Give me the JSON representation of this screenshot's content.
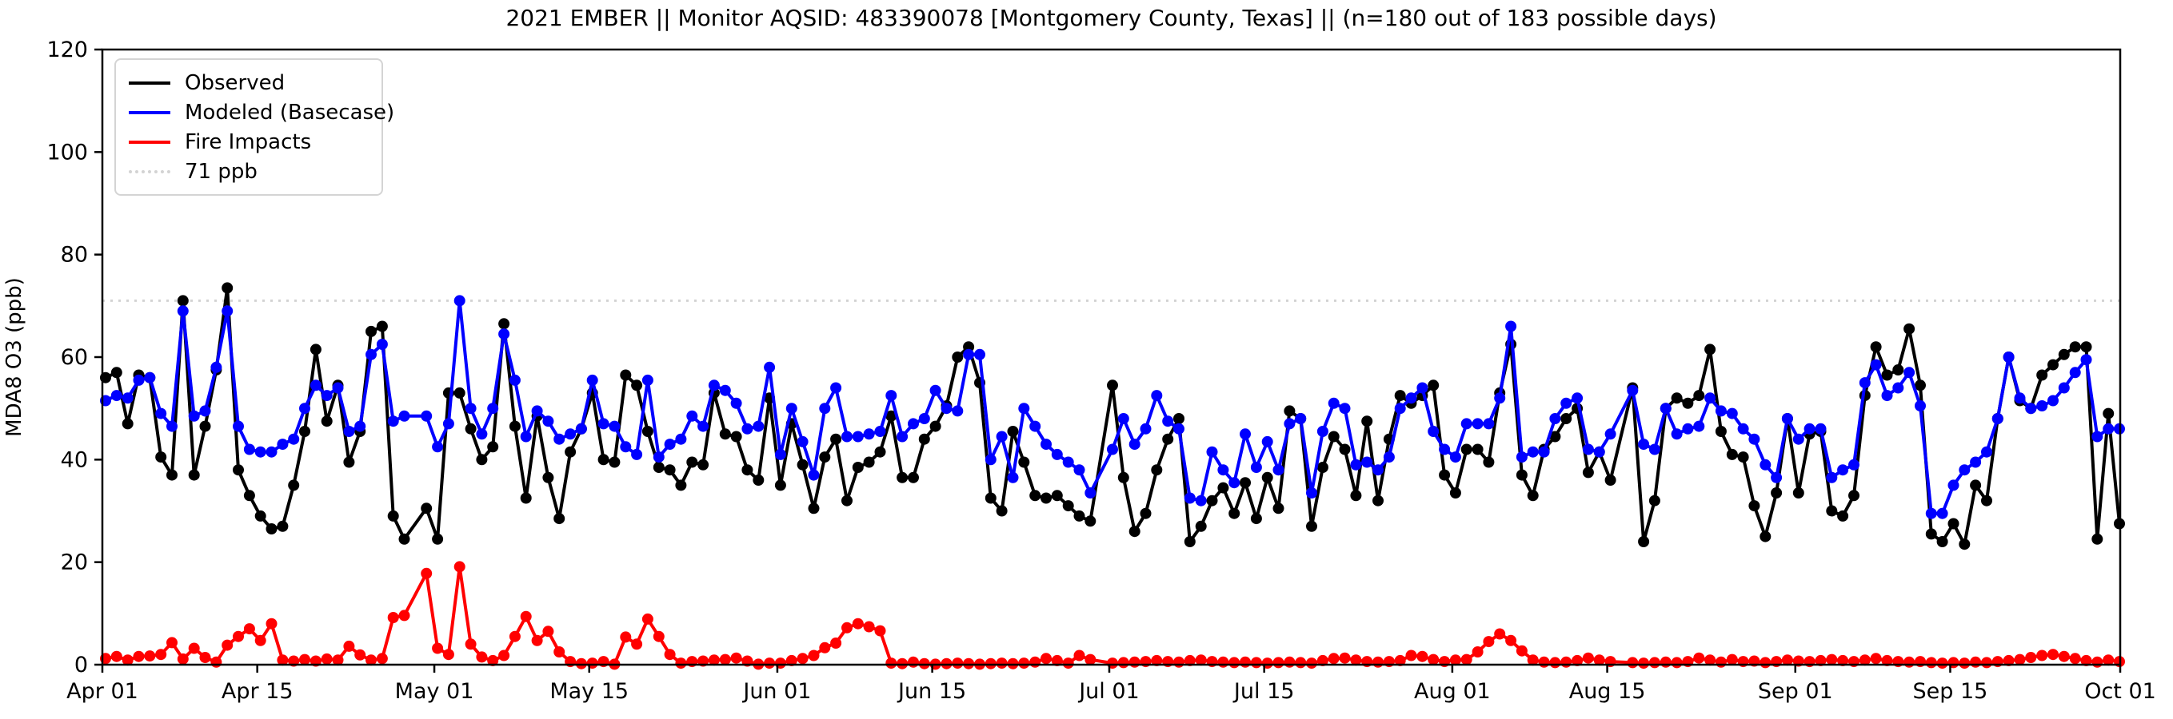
{
  "header": {
    "title": "2021 EMBER || Monitor AQSID: 483390078 [Montgomery County, Texas] || (n=180 out of 183 possible days)"
  },
  "axes": {
    "y": {
      "label": "MDA8 O3 (ppb)",
      "ticks": [
        0,
        20,
        40,
        60,
        80,
        100,
        120
      ],
      "range": [
        0,
        120
      ]
    },
    "x": {
      "tick_labels": [
        "Apr 01",
        "Apr 15",
        "May 01",
        "May 15",
        "Jun 01",
        "Jun 15",
        "Jul 01",
        "Jul 15",
        "Aug 01",
        "Aug 15",
        "Sep 01",
        "Sep 15",
        "Oct 01"
      ],
      "tick_day_index": [
        0,
        14,
        30,
        44,
        61,
        75,
        91,
        105,
        122,
        136,
        153,
        167,
        183
      ]
    }
  },
  "legend": {
    "items": [
      {
        "label": "Observed",
        "color": "#000000",
        "style": "solid"
      },
      {
        "label": "Modeled (Basecase)",
        "color": "#0000ff",
        "style": "solid"
      },
      {
        "label": "Fire Impacts",
        "color": "#ff0000",
        "style": "solid"
      },
      {
        "label": "71 ppb",
        "color": "#d3d3d3",
        "style": "dotted"
      }
    ]
  },
  "chart_data": {
    "type": "line",
    "title": "2021 EMBER || Monitor AQSID: 483390078 [Montgomery County, Texas] || (n=180 out of 183 possible days)",
    "xlabel": "",
    "ylabel": "MDA8 O3 (ppb)",
    "ylim": [
      0,
      120
    ],
    "x_start": "Apr 01",
    "x_end": "Oct 01",
    "days_total": 183,
    "missing_days": [
      "Apr 29",
      "Jun 30",
      "Aug 16"
    ],
    "threshold": {
      "label": "71 ppb",
      "value": 71,
      "color": "#d3d3d3"
    },
    "legend_position": "upper left",
    "grid": false,
    "series": [
      {
        "name": "Observed",
        "color": "#000000",
        "values": [
          56,
          57,
          47,
          56.5,
          56,
          40.5,
          37,
          71,
          37,
          46.5,
          57.5,
          73.5,
          38,
          33,
          29,
          26.5,
          27,
          35,
          45.5,
          61.5,
          47.5,
          54.5,
          39.5,
          45.5,
          65,
          66,
          29,
          24.5,
          null,
          30.5,
          24.5,
          53,
          53,
          46,
          40,
          42.5,
          66.5,
          46.5,
          32.5,
          48.5,
          36.5,
          28.5,
          41.5,
          46,
          53,
          40,
          39.5,
          56.5,
          54.5,
          45.5,
          38.5,
          38,
          35,
          39.5,
          39,
          53,
          45,
          44.5,
          38,
          36,
          52,
          35,
          47,
          39,
          30.5,
          40.5,
          44,
          32,
          38.5,
          39.5,
          41.5,
          48.5,
          36.5,
          36.5,
          44,
          46.5,
          50.5,
          60,
          62,
          55,
          32.5,
          30,
          45.5,
          39.5,
          33,
          32.5,
          33,
          31,
          29,
          28,
          null,
          54.5,
          36.5,
          26,
          29.5,
          38,
          44,
          48,
          24,
          27,
          32,
          34.5,
          29.5,
          35.5,
          28.5,
          36.5,
          30.5,
          49.5,
          48,
          27,
          38.5,
          44.5,
          42,
          33,
          47.5,
          32,
          44,
          52.5,
          51,
          52.5,
          54.5,
          37,
          33.5,
          42,
          42,
          39.5,
          53,
          62.5,
          37,
          33,
          42,
          44.5,
          48,
          50,
          37.5,
          41.5,
          36,
          null,
          54,
          24,
          32,
          50,
          52,
          51,
          52.5,
          61.5,
          45.5,
          41,
          40.5,
          31,
          25,
          33.5,
          48,
          33.5,
          45,
          45.5,
          30,
          29,
          33,
          52.5,
          62,
          56.5,
          57.5,
          65.5,
          54.5,
          25.5,
          24,
          27.5,
          23.5,
          35,
          32,
          48,
          60,
          51.5,
          50,
          56.5,
          58.5,
          60.5,
          62,
          62,
          24.5,
          49,
          27.5
        ]
      },
      {
        "name": "Modeled (Basecase)",
        "color": "#0000ff",
        "values": [
          51.5,
          52.5,
          52,
          55.5,
          56,
          49,
          46.5,
          69,
          48.5,
          49.5,
          58,
          69,
          46.5,
          42,
          41.5,
          41.5,
          43,
          44,
          50,
          54.5,
          52.5,
          54,
          45.5,
          46.5,
          60.5,
          62.5,
          47.5,
          48.5,
          null,
          48.5,
          42.5,
          47,
          71,
          50,
          45,
          50,
          64.5,
          55.5,
          44.5,
          49.5,
          47.5,
          44,
          45,
          46,
          55.5,
          47,
          46.5,
          42.5,
          41,
          55.5,
          40.5,
          43,
          44,
          48.5,
          46.5,
          54.5,
          53.5,
          51,
          46,
          46.5,
          58,
          41,
          50,
          43.5,
          37,
          50,
          54,
          44.5,
          44.5,
          45,
          45.5,
          52.5,
          44.5,
          47,
          48,
          53.5,
          50,
          49.5,
          60.5,
          60.5,
          40,
          44.5,
          36.5,
          50,
          46.5,
          43,
          41,
          39.5,
          38,
          33.5,
          null,
          42,
          48,
          43,
          46,
          52.5,
          47.5,
          46,
          32.5,
          32,
          41.5,
          38,
          35.5,
          45,
          38.5,
          43.5,
          38,
          47,
          48,
          33.5,
          45.5,
          51,
          50,
          39,
          39.5,
          38,
          40.5,
          50,
          52,
          54,
          45.5,
          42,
          40.5,
          47,
          47,
          47,
          52,
          66,
          40.5,
          41.5,
          41.5,
          48,
          51,
          52,
          42,
          41.5,
          45,
          null,
          53.5,
          43,
          42,
          50,
          45,
          46,
          46.5,
          52,
          49.5,
          49,
          46,
          44,
          39,
          36.5,
          48,
          44,
          46,
          46,
          36.5,
          38,
          39,
          55,
          58.5,
          52.5,
          54,
          57,
          50.5,
          29.5,
          29.5,
          35,
          38,
          39.5,
          41.5,
          48,
          60,
          52,
          50,
          50.5,
          51.5,
          54,
          57,
          59.5,
          44.5,
          46,
          46
        ]
      },
      {
        "name": "Fire Impacts",
        "color": "#ff0000",
        "values": [
          1.2,
          1.6,
          0.9,
          1.6,
          1.7,
          2,
          4.3,
          1.1,
          3.2,
          1.4,
          0.5,
          3.8,
          5.5,
          7,
          4.7,
          8,
          0.9,
          0.7,
          1,
          0.7,
          1.1,
          0.9,
          3.6,
          1.9,
          0.9,
          1.2,
          9.2,
          9.6,
          null,
          17.8,
          3.2,
          2,
          19.1,
          4,
          1.5,
          0.8,
          1.8,
          5.5,
          9.4,
          4.7,
          6.5,
          2.5,
          0.6,
          0.2,
          0.3,
          0.6,
          0.1,
          5.4,
          4,
          8.9,
          5.5,
          2,
          0.3,
          0.6,
          0.7,
          0.9,
          1,
          1.3,
          0.7,
          0.1,
          0.3,
          0.3,
          0.8,
          1.2,
          1.8,
          3.3,
          4.2,
          7.2,
          8,
          7.4,
          6.6,
          0.3,
          0.2,
          0.5,
          0.2,
          0.1,
          0.2,
          0.3,
          0.2,
          0.1,
          0.2,
          0.3,
          0.2,
          0.3,
          0.5,
          1.2,
          0.8,
          0.3,
          1.8,
          1,
          null,
          0.3,
          0.4,
          0.5,
          0.6,
          0.8,
          0.6,
          0.5,
          0.8,
          0.9,
          0.6,
          0.5,
          0.4,
          0.5,
          0.4,
          0.3,
          0.4,
          0.5,
          0.4,
          0.3,
          0.8,
          1.2,
          1.3,
          0.9,
          0.6,
          0.5,
          0.6,
          0.8,
          1.8,
          1.6,
          1,
          0.6,
          0.9,
          1,
          2.5,
          4.5,
          6,
          4.7,
          2.7,
          0.9,
          0.5,
          0.4,
          0.5,
          0.8,
          1.3,
          0.9,
          0.6,
          null,
          0.4,
          0.3,
          0.4,
          0.5,
          0.4,
          0.6,
          1.3,
          0.9,
          0.5,
          1,
          0.6,
          0.7,
          0.4,
          0.6,
          0.9,
          0.7,
          0.6,
          0.8,
          1,
          0.8,
          0.6,
          0.9,
          1.2,
          0.8,
          0.6,
          0.5,
          0.6,
          0.4,
          0.3,
          0.4,
          0.3,
          0.5,
          0.4,
          0.6,
          0.8,
          1,
          1.4,
          1.8,
          2,
          1.6,
          1.2,
          0.8,
          0.5,
          0.9,
          0.6
        ]
      }
    ]
  }
}
